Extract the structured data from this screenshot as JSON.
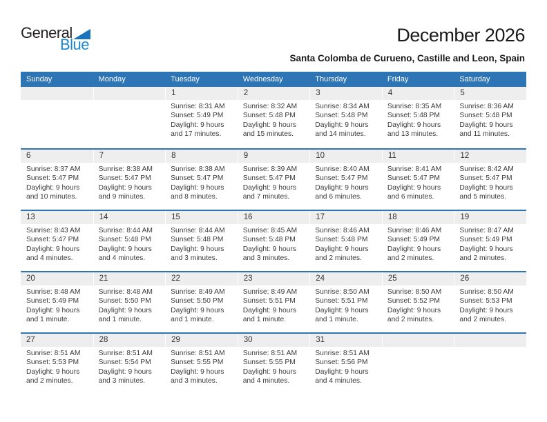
{
  "logo": {
    "general": "General",
    "blue": "Blue"
  },
  "header": {
    "title": "December 2026",
    "subtitle": "Santa Colomba de Curueno, Castille and Leon, Spain"
  },
  "colors": {
    "header_bg": "#2E75B6",
    "week_separator": "#2E75B6",
    "day_band_bg": "#EEEEEE",
    "weekday_text": "#FFFFFF",
    "body_text": "#3B3B3B",
    "logo_text_blue": "#1F86C9",
    "logo_triangle_blue": "#1B74BC"
  },
  "calendar": {
    "day_headers": [
      "Sunday",
      "Monday",
      "Tuesday",
      "Wednesday",
      "Thursday",
      "Friday",
      "Saturday"
    ],
    "weeks": [
      [
        {
          "day": "",
          "lines": []
        },
        {
          "day": "",
          "lines": []
        },
        {
          "day": "1",
          "lines": [
            "Sunrise: 8:31 AM",
            "Sunset: 5:49 PM",
            "Daylight: 9 hours",
            "and 17 minutes."
          ]
        },
        {
          "day": "2",
          "lines": [
            "Sunrise: 8:32 AM",
            "Sunset: 5:48 PM",
            "Daylight: 9 hours",
            "and 15 minutes."
          ]
        },
        {
          "day": "3",
          "lines": [
            "Sunrise: 8:34 AM",
            "Sunset: 5:48 PM",
            "Daylight: 9 hours",
            "and 14 minutes."
          ]
        },
        {
          "day": "4",
          "lines": [
            "Sunrise: 8:35 AM",
            "Sunset: 5:48 PM",
            "Daylight: 9 hours",
            "and 13 minutes."
          ]
        },
        {
          "day": "5",
          "lines": [
            "Sunrise: 8:36 AM",
            "Sunset: 5:48 PM",
            "Daylight: 9 hours",
            "and 11 minutes."
          ]
        }
      ],
      [
        {
          "day": "6",
          "lines": [
            "Sunrise: 8:37 AM",
            "Sunset: 5:47 PM",
            "Daylight: 9 hours",
            "and 10 minutes."
          ]
        },
        {
          "day": "7",
          "lines": [
            "Sunrise: 8:38 AM",
            "Sunset: 5:47 PM",
            "Daylight: 9 hours",
            "and 9 minutes."
          ]
        },
        {
          "day": "8",
          "lines": [
            "Sunrise: 8:38 AM",
            "Sunset: 5:47 PM",
            "Daylight: 9 hours",
            "and 8 minutes."
          ]
        },
        {
          "day": "9",
          "lines": [
            "Sunrise: 8:39 AM",
            "Sunset: 5:47 PM",
            "Daylight: 9 hours",
            "and 7 minutes."
          ]
        },
        {
          "day": "10",
          "lines": [
            "Sunrise: 8:40 AM",
            "Sunset: 5:47 PM",
            "Daylight: 9 hours",
            "and 6 minutes."
          ]
        },
        {
          "day": "11",
          "lines": [
            "Sunrise: 8:41 AM",
            "Sunset: 5:47 PM",
            "Daylight: 9 hours",
            "and 6 minutes."
          ]
        },
        {
          "day": "12",
          "lines": [
            "Sunrise: 8:42 AM",
            "Sunset: 5:47 PM",
            "Daylight: 9 hours",
            "and 5 minutes."
          ]
        }
      ],
      [
        {
          "day": "13",
          "lines": [
            "Sunrise: 8:43 AM",
            "Sunset: 5:47 PM",
            "Daylight: 9 hours",
            "and 4 minutes."
          ]
        },
        {
          "day": "14",
          "lines": [
            "Sunrise: 8:44 AM",
            "Sunset: 5:48 PM",
            "Daylight: 9 hours",
            "and 4 minutes."
          ]
        },
        {
          "day": "15",
          "lines": [
            "Sunrise: 8:44 AM",
            "Sunset: 5:48 PM",
            "Daylight: 9 hours",
            "and 3 minutes."
          ]
        },
        {
          "day": "16",
          "lines": [
            "Sunrise: 8:45 AM",
            "Sunset: 5:48 PM",
            "Daylight: 9 hours",
            "and 3 minutes."
          ]
        },
        {
          "day": "17",
          "lines": [
            "Sunrise: 8:46 AM",
            "Sunset: 5:48 PM",
            "Daylight: 9 hours",
            "and 2 minutes."
          ]
        },
        {
          "day": "18",
          "lines": [
            "Sunrise: 8:46 AM",
            "Sunset: 5:49 PM",
            "Daylight: 9 hours",
            "and 2 minutes."
          ]
        },
        {
          "day": "19",
          "lines": [
            "Sunrise: 8:47 AM",
            "Sunset: 5:49 PM",
            "Daylight: 9 hours",
            "and 2 minutes."
          ]
        }
      ],
      [
        {
          "day": "20",
          "lines": [
            "Sunrise: 8:48 AM",
            "Sunset: 5:49 PM",
            "Daylight: 9 hours",
            "and 1 minute."
          ]
        },
        {
          "day": "21",
          "lines": [
            "Sunrise: 8:48 AM",
            "Sunset: 5:50 PM",
            "Daylight: 9 hours",
            "and 1 minute."
          ]
        },
        {
          "day": "22",
          "lines": [
            "Sunrise: 8:49 AM",
            "Sunset: 5:50 PM",
            "Daylight: 9 hours",
            "and 1 minute."
          ]
        },
        {
          "day": "23",
          "lines": [
            "Sunrise: 8:49 AM",
            "Sunset: 5:51 PM",
            "Daylight: 9 hours",
            "and 1 minute."
          ]
        },
        {
          "day": "24",
          "lines": [
            "Sunrise: 8:50 AM",
            "Sunset: 5:51 PM",
            "Daylight: 9 hours",
            "and 1 minute."
          ]
        },
        {
          "day": "25",
          "lines": [
            "Sunrise: 8:50 AM",
            "Sunset: 5:52 PM",
            "Daylight: 9 hours",
            "and 2 minutes."
          ]
        },
        {
          "day": "26",
          "lines": [
            "Sunrise: 8:50 AM",
            "Sunset: 5:53 PM",
            "Daylight: 9 hours",
            "and 2 minutes."
          ]
        }
      ],
      [
        {
          "day": "27",
          "lines": [
            "Sunrise: 8:51 AM",
            "Sunset: 5:53 PM",
            "Daylight: 9 hours",
            "and 2 minutes."
          ]
        },
        {
          "day": "28",
          "lines": [
            "Sunrise: 8:51 AM",
            "Sunset: 5:54 PM",
            "Daylight: 9 hours",
            "and 3 minutes."
          ]
        },
        {
          "day": "29",
          "lines": [
            "Sunrise: 8:51 AM",
            "Sunset: 5:55 PM",
            "Daylight: 9 hours",
            "and 3 minutes."
          ]
        },
        {
          "day": "30",
          "lines": [
            "Sunrise: 8:51 AM",
            "Sunset: 5:55 PM",
            "Daylight: 9 hours",
            "and 4 minutes."
          ]
        },
        {
          "day": "31",
          "lines": [
            "Sunrise: 8:51 AM",
            "Sunset: 5:56 PM",
            "Daylight: 9 hours",
            "and 4 minutes."
          ]
        },
        {
          "day": "",
          "lines": []
        },
        {
          "day": "",
          "lines": []
        }
      ]
    ]
  }
}
